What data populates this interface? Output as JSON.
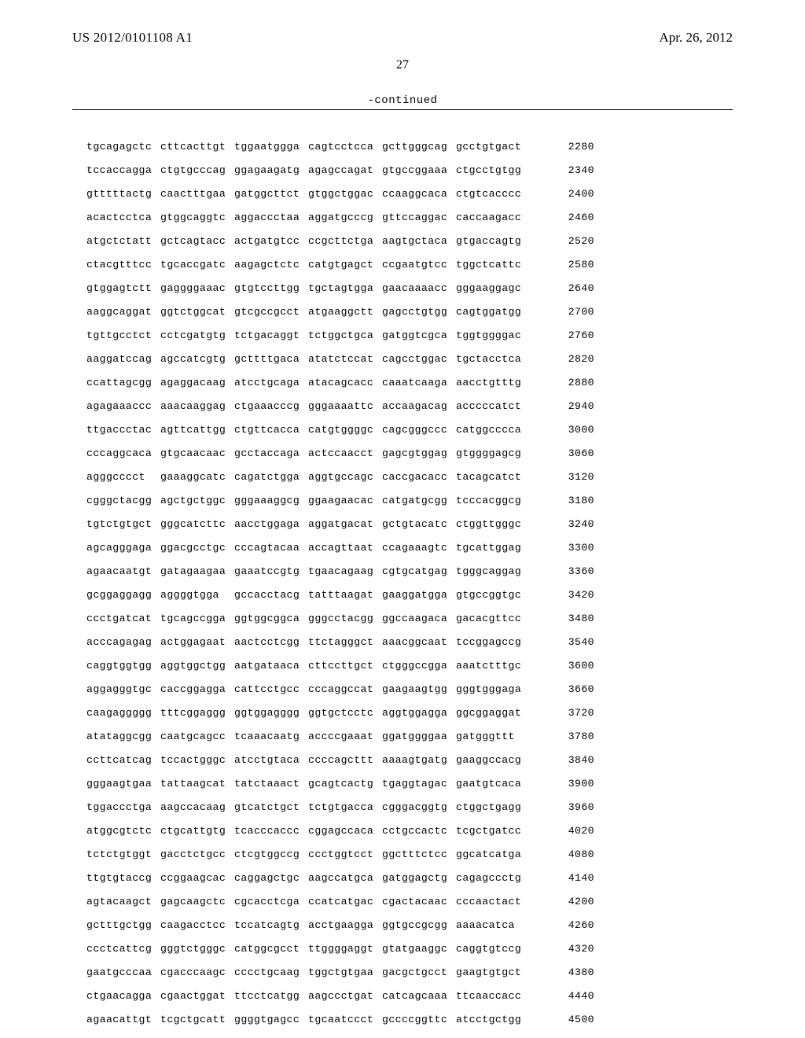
{
  "header": {
    "pub_number": "US 2012/0101108 A1",
    "pub_date": "Apr. 26, 2012",
    "page_number": "27",
    "continued_label": "-continued"
  },
  "sequence": {
    "rows": [
      {
        "g": [
          "tgcagagctc",
          "cttcacttgt",
          "tggaatggga",
          "cagtcctcca",
          "gcttgggcag",
          "gcctgtgact"
        ],
        "n": "2280"
      },
      {
        "g": [
          "tccaccagga",
          "ctgtgcccag",
          "ggagaagatg",
          "agagccagat",
          "gtgccggaaa",
          "ctgcctgtgg"
        ],
        "n": "2340"
      },
      {
        "g": [
          "gtttttactg",
          "caactttgaa",
          "gatggcttct",
          "gtggctggac",
          "ccaaggcaca",
          "ctgtcacccc"
        ],
        "n": "2400"
      },
      {
        "g": [
          "acactcctca",
          "gtggcaggtc",
          "aggaccctaa",
          "aggatgcccg",
          "gttccaggac",
          "caccaagacc"
        ],
        "n": "2460"
      },
      {
        "g": [
          "atgctctatt",
          "gctcagtacc",
          "actgatgtcc",
          "ccgcttctga",
          "aagtgctaca",
          "gtgaccagtg"
        ],
        "n": "2520"
      },
      {
        "g": [
          "ctacgtttcc",
          "tgcaccgatc",
          "aagagctctc",
          "catgtgagct",
          "ccgaatgtcc",
          "tggctcattc"
        ],
        "n": "2580"
      },
      {
        "g": [
          "gtggagtctt",
          "gaggggaaac",
          "gtgtccttgg",
          "tgctagtgga",
          "gaacaaaacc",
          "gggaaggagc"
        ],
        "n": "2640"
      },
      {
        "g": [
          "aaggcaggat",
          "ggtctggcat",
          "gtcgccgcct",
          "atgaaggctt",
          "gagcctgtgg",
          "cagtggatgg"
        ],
        "n": "2700"
      },
      {
        "g": [
          "tgttgcctct",
          "cctcgatgtg",
          "tctgacaggt",
          "tctggctgca",
          "gatggtcgca",
          "tggtggggac"
        ],
        "n": "2760"
      },
      {
        "g": [
          "aaggatccag",
          "agccatcgtg",
          "gcttttgaca",
          "atatctccat",
          "cagcctggac",
          "tgctacctca"
        ],
        "n": "2820"
      },
      {
        "g": [
          "ccattagcgg",
          "agaggacaag",
          "atcctgcaga",
          "atacagcacc",
          "caaatcaaga",
          "aacctgtttg"
        ],
        "n": "2880"
      },
      {
        "g": [
          "agagaaaccc",
          "aaacaaggag",
          "ctgaaacccg",
          "gggaaaattc",
          "accaagacag",
          "acccccatct"
        ],
        "n": "2940"
      },
      {
        "g": [
          "ttgaccctac",
          "agttcattgg",
          "ctgttcacca",
          "catgtggggc",
          "cagcgggccc",
          "catggcccca"
        ],
        "n": "3000"
      },
      {
        "g": [
          "cccaggcaca",
          "gtgcaacaac",
          "gcctaccaga",
          "actccaacct",
          "gagcgtggag",
          "gtggggagcg"
        ],
        "n": "3060"
      },
      {
        "g": [
          "agggcccct",
          "gaaaggcatc",
          "cagatctgga",
          "aggtgccagc",
          "caccgacacc",
          "tacagcatct"
        ],
        "n": "3120"
      },
      {
        "g": [
          "cgggctacgg",
          "agctgctggc",
          "gggaaaggcg",
          "ggaagaacac",
          "catgatgcgg",
          "tcccacggcg"
        ],
        "n": "3180"
      },
      {
        "g": [
          "tgtctgtgct",
          "gggcatcttc",
          "aacctggaga",
          "aggatgacat",
          "gctgtacatc",
          "ctggttgggc"
        ],
        "n": "3240"
      },
      {
        "g": [
          "agcagggaga",
          "ggacgcctgc",
          "cccagtacaa",
          "accagttaat",
          "ccagaaagtc",
          "tgcattggag"
        ],
        "n": "3300"
      },
      {
        "g": [
          "agaacaatgt",
          "gatagaagaa",
          "gaaatccgtg",
          "tgaacagaag",
          "cgtgcatgag",
          "tgggcaggag"
        ],
        "n": "3360"
      },
      {
        "g": [
          "gcggaggagg",
          "aggggtgga",
          "gccacctacg",
          "tatttaagat",
          "gaaggatgga",
          "gtgccggtgc"
        ],
        "n": "3420"
      },
      {
        "g": [
          "ccctgatcat",
          "tgcagccgga",
          "ggtggcggca",
          "gggcctacgg",
          "ggccaagaca",
          "gacacgttcc"
        ],
        "n": "3480"
      },
      {
        "g": [
          "acccagagag",
          "actggagaat",
          "aactcctcgg",
          "ttctagggct",
          "aaacggcaat",
          "tccggagccg"
        ],
        "n": "3540"
      },
      {
        "g": [
          "caggtggtgg",
          "aggtggctgg",
          "aatgataaca",
          "cttccttgct",
          "ctgggccgga",
          "aaatctttgc"
        ],
        "n": "3600"
      },
      {
        "g": [
          "aggagggtgc",
          "caccggagga",
          "cattcctgcc",
          "cccaggccat",
          "gaagaagtgg",
          "gggtgggaga"
        ],
        "n": "3660"
      },
      {
        "g": [
          "caagaggggg",
          "tttcggaggg",
          "ggtggagggg",
          "ggtgctcctc",
          "aggtggagga",
          "ggcggaggat"
        ],
        "n": "3720"
      },
      {
        "g": [
          "atataggcgg",
          "caatgcagcc",
          "tcaaacaatg",
          "accccgaaat",
          "ggatggggaa",
          "gatgggttt"
        ],
        "n": "3780"
      },
      {
        "g": [
          "ccttcatcag",
          "tccactgggc",
          "atcctgtaca",
          "ccccagcttt",
          "aaaagtgatg",
          "gaaggccacg"
        ],
        "n": "3840"
      },
      {
        "g": [
          "gggaagtgaa",
          "tattaagcat",
          "tatctaaact",
          "gcagtcactg",
          "tgaggtagac",
          "gaatgtcaca"
        ],
        "n": "3900"
      },
      {
        "g": [
          "tggaccctga",
          "aagccacaag",
          "gtcatctgct",
          "tctgtgacca",
          "cgggacggtg",
          "ctggctgagg"
        ],
        "n": "3960"
      },
      {
        "g": [
          "atggcgtctc",
          "ctgcattgtg",
          "tcacccaccc",
          "cggagccaca",
          "cctgccactc",
          "tcgctgatcc"
        ],
        "n": "4020"
      },
      {
        "g": [
          "tctctgtggt",
          "gacctctgcc",
          "ctcgtggccg",
          "ccctggtcct",
          "ggctttctcc",
          "ggcatcatga"
        ],
        "n": "4080"
      },
      {
        "g": [
          "ttgtgtaccg",
          "ccggaagcac",
          "caggagctgc",
          "aagccatgca",
          "gatggagctg",
          "cagagccctg"
        ],
        "n": "4140"
      },
      {
        "g": [
          "agtacaagct",
          "gagcaagctc",
          "cgcacctcga",
          "ccatcatgac",
          "cgactacaac",
          "cccaactact"
        ],
        "n": "4200"
      },
      {
        "g": [
          "gctttgctgg",
          "caagacctcc",
          "tccatcagtg",
          "acctgaagga",
          "ggtgccgcgg",
          "aaaacatca"
        ],
        "n": "4260"
      },
      {
        "g": [
          "ccctcattcg",
          "gggtctgggc",
          "catggcgcct",
          "ttggggaggt",
          "gtatgaaggc",
          "caggtgtccg"
        ],
        "n": "4320"
      },
      {
        "g": [
          "gaatgcccaa",
          "cgacccaagc",
          "cccctgcaag",
          "tggctgtgaa",
          "gacgctgcct",
          "gaagtgtgct"
        ],
        "n": "4380"
      },
      {
        "g": [
          "ctgaacagga",
          "cgaactggat",
          "ttcctcatgg",
          "aagccctgat",
          "catcagcaaa",
          "ttcaaccacc"
        ],
        "n": "4440"
      },
      {
        "g": [
          "agaacattgt",
          "tcgctgcatt",
          "ggggtgagcc",
          "tgcaatccct",
          "gccccggttc",
          "atcctgctgg"
        ],
        "n": "4500"
      }
    ]
  }
}
